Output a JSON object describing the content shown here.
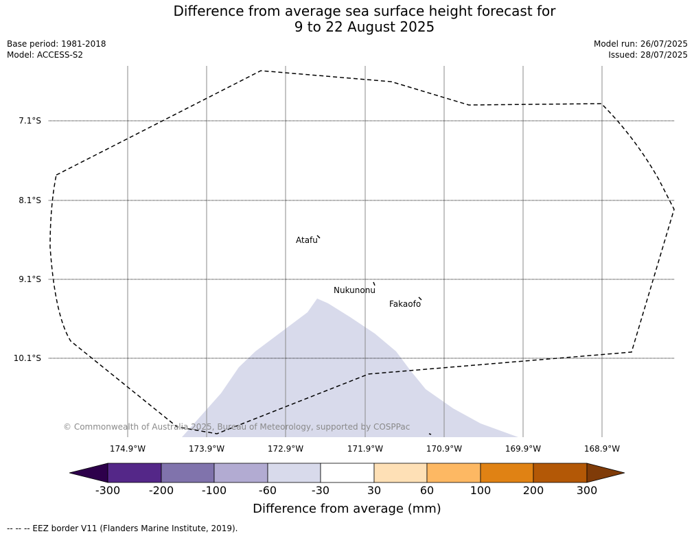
{
  "title_line1": "Difference from average sea surface height forecast for",
  "title_line2": "9 to 22 August 2025",
  "meta_left": {
    "base_period": "Base period: 1981-2018",
    "model": "Model: ACCESS-S2"
  },
  "meta_right": {
    "model_run": "Model run: 26/07/2025",
    "issued": "Issued: 28/07/2025"
  },
  "latitudes": [
    "7.1°S",
    "8.1°S",
    "9.1°S",
    "10.1°S"
  ],
  "longitudes": [
    "174.9°W",
    "173.9°W",
    "172.9°W",
    "171.9°W",
    "170.9°W",
    "169.9°W",
    "168.9°W"
  ],
  "places": [
    "Atafu",
    "Nukunonu",
    "Fakaofo"
  ],
  "copyright": "© Commonwealth of Australia 2025, Bureau of Meteorology, supported by COSPPac",
  "colorbar": {
    "ticks": [
      "-300",
      "-200",
      "-100",
      "-60",
      "-30",
      "30",
      "60",
      "100",
      "200",
      "300"
    ],
    "colors": [
      "#2d004b",
      "#542788",
      "#8073ac",
      "#b2abd2",
      "#d8daeb",
      "#ffffff",
      "#fee0b6",
      "#fdb863",
      "#e08214",
      "#b35806",
      "#7f3b08"
    ],
    "label": "Difference from average (mm)"
  },
  "anomaly_region_color": "#d8daeb",
  "footer": "--  --  -- EEZ border V11 (Flanders Marine Institute, 2019)."
}
